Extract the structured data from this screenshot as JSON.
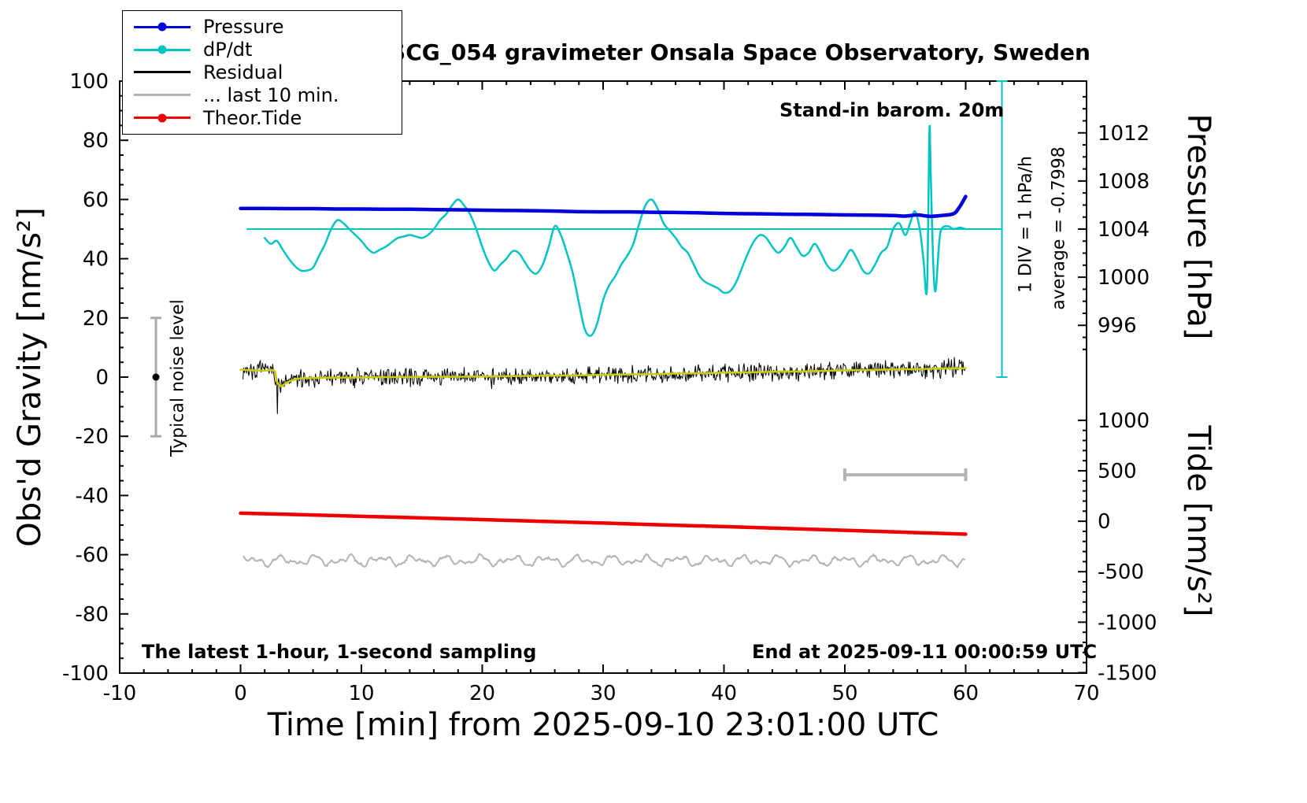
{
  "title": "SCG_054 gravimeter Onsala Space Observatory, Sweden",
  "annotations": {
    "barom": "Stand-in barom. 20m",
    "div_scale": "1 DIV = 1 hPa/h",
    "average": "average = -0.7998",
    "noise_level": "Typical noise level",
    "sampling": "The latest 1-hour, 1-second sampling",
    "end_time": "End at 2025-09-11 00:00:59 UTC"
  },
  "legend": [
    {
      "label": "Pressure",
      "color": "#0000dd",
      "marker": true
    },
    {
      "label": "dP/dt",
      "color": "#00c4c4",
      "marker": true
    },
    {
      "label": "Residual",
      "color": "#000000",
      "marker": false
    },
    {
      "label": "... last 10 min.",
      "color": "#b3b3b3",
      "marker": false
    },
    {
      "label": "Theor.Tide",
      "color": "#ee0000",
      "marker": true
    }
  ],
  "chart_data": {
    "type": "line",
    "title": "SCG_054 gravimeter Onsala Space Observatory, Sweden",
    "xlabel": "Time [min] from 2025-09-10 23:01:00 UTC",
    "x_range": [
      -10,
      70
    ],
    "x_major_ticks": [
      -10,
      0,
      10,
      20,
      30,
      40,
      50,
      60,
      70
    ],
    "x_minor_step": 2,
    "y_left": {
      "label": "Obs'd Gravity [nm/s²]",
      "range": [
        -100,
        100
      ],
      "major_ticks": [
        -100,
        -80,
        -60,
        -40,
        -20,
        0,
        20,
        40,
        60,
        80,
        100
      ],
      "minor_step": 5
    },
    "y_right_pressure": {
      "label": "Pressure [hPa]",
      "major_ticks": [
        996,
        1000,
        1004,
        1008,
        1012
      ],
      "minor_step": 1,
      "minor_range": [
        994,
        1015
      ],
      "gravity_equiv": "g = 50 + (hPa - 1004) * 4.064"
    },
    "y_right_tide": {
      "label": "Tide [nm/s²]",
      "major_ticks": [
        -1500,
        -1000,
        -500,
        0,
        500,
        1000
      ],
      "minor_step": 100,
      "gravity_equiv": "g = -48.7 + tide * 0.0341"
    },
    "series": [
      {
        "name": "Pressure",
        "axis": "pressure",
        "units": "hPa",
        "color": "#0000dd",
        "width": 4.5,
        "render": "smooth",
        "points": [
          [
            0,
            1005.72
          ],
          [
            2,
            1005.72
          ],
          [
            4,
            1005.7
          ],
          [
            6,
            1005.7
          ],
          [
            8,
            1005.67
          ],
          [
            10,
            1005.67
          ],
          [
            12,
            1005.65
          ],
          [
            14,
            1005.65
          ],
          [
            16,
            1005.62
          ],
          [
            18,
            1005.6
          ],
          [
            20,
            1005.57
          ],
          [
            22,
            1005.55
          ],
          [
            24,
            1005.53
          ],
          [
            26,
            1005.5
          ],
          [
            28,
            1005.45
          ],
          [
            30,
            1005.43
          ],
          [
            32,
            1005.43
          ],
          [
            34,
            1005.4
          ],
          [
            36,
            1005.38
          ],
          [
            38,
            1005.35
          ],
          [
            40,
            1005.3
          ],
          [
            42,
            1005.28
          ],
          [
            44,
            1005.25
          ],
          [
            46,
            1005.23
          ],
          [
            48,
            1005.21
          ],
          [
            50,
            1005.18
          ],
          [
            52,
            1005.16
          ],
          [
            54,
            1005.13
          ],
          [
            55,
            1005.08
          ],
          [
            56,
            1005.18
          ],
          [
            57,
            1005.06
          ],
          [
            58,
            1005.13
          ],
          [
            59,
            1005.28
          ],
          [
            59.5,
            1005.85
          ],
          [
            60,
            1006.71
          ]
        ]
      },
      {
        "name": "dP/dt",
        "axis": "gravity",
        "units": "hPa/h (1 DIV = 1 hPa/h, zero line at g=50)",
        "color": "#00c4c4",
        "width": 2.5,
        "render": "smooth",
        "points": [
          [
            2,
            47
          ],
          [
            2.5,
            45
          ],
          [
            3,
            46
          ],
          [
            3.5,
            43
          ],
          [
            4,
            40
          ],
          [
            4.5,
            37.5
          ],
          [
            5,
            36
          ],
          [
            5.5,
            36
          ],
          [
            6,
            37
          ],
          [
            6.5,
            41
          ],
          [
            7,
            45
          ],
          [
            7.5,
            50
          ],
          [
            8,
            53
          ],
          [
            8.5,
            52
          ],
          [
            9,
            50
          ],
          [
            9.5,
            48
          ],
          [
            10,
            46
          ],
          [
            10.5,
            43.5
          ],
          [
            11,
            42
          ],
          [
            11.5,
            43
          ],
          [
            12,
            44
          ],
          [
            12.5,
            45.5
          ],
          [
            13,
            47
          ],
          [
            13.5,
            47.5
          ],
          [
            14,
            48
          ],
          [
            14.5,
            47.5
          ],
          [
            15,
            47
          ],
          [
            15.5,
            48
          ],
          [
            16,
            50
          ],
          [
            16.5,
            53
          ],
          [
            17,
            55
          ],
          [
            17.5,
            58
          ],
          [
            18,
            60
          ],
          [
            18.5,
            58
          ],
          [
            19,
            55
          ],
          [
            19.5,
            50
          ],
          [
            20,
            44
          ],
          [
            20.5,
            39
          ],
          [
            21,
            36
          ],
          [
            21.5,
            38
          ],
          [
            22,
            40
          ],
          [
            22.5,
            42.5
          ],
          [
            23,
            42
          ],
          [
            23.5,
            39
          ],
          [
            24,
            36
          ],
          [
            24.5,
            35
          ],
          [
            25,
            38
          ],
          [
            25.5,
            44
          ],
          [
            26,
            51
          ],
          [
            26.5,
            48
          ],
          [
            27,
            42
          ],
          [
            27.5,
            35
          ],
          [
            28,
            25
          ],
          [
            28.5,
            16
          ],
          [
            29,
            14
          ],
          [
            29.5,
            18
          ],
          [
            30,
            26
          ],
          [
            30.5,
            31
          ],
          [
            31,
            34
          ],
          [
            31.5,
            38
          ],
          [
            32,
            41
          ],
          [
            32.5,
            45
          ],
          [
            33,
            52
          ],
          [
            33.5,
            58
          ],
          [
            34,
            60
          ],
          [
            34.5,
            57
          ],
          [
            35,
            52
          ],
          [
            35.5,
            49.5
          ],
          [
            36,
            47
          ],
          [
            36.5,
            44
          ],
          [
            37,
            42
          ],
          [
            37.5,
            38
          ],
          [
            38,
            34
          ],
          [
            38.5,
            32
          ],
          [
            39,
            31
          ],
          [
            39.5,
            30
          ],
          [
            40,
            28.5
          ],
          [
            40.5,
            29
          ],
          [
            41,
            32
          ],
          [
            41.5,
            37
          ],
          [
            42,
            42
          ],
          [
            42.5,
            46
          ],
          [
            43,
            48
          ],
          [
            43.5,
            47
          ],
          [
            44,
            44
          ],
          [
            44.5,
            42
          ],
          [
            45,
            44
          ],
          [
            45.5,
            47
          ],
          [
            46,
            44
          ],
          [
            46.5,
            41
          ],
          [
            47,
            42
          ],
          [
            47.5,
            45
          ],
          [
            48,
            42
          ],
          [
            48.5,
            38
          ],
          [
            49,
            36
          ],
          [
            49.5,
            37
          ],
          [
            50,
            40
          ],
          [
            50.5,
            43
          ],
          [
            51,
            40
          ],
          [
            51.5,
            36
          ],
          [
            52,
            35
          ],
          [
            52.5,
            38
          ],
          [
            53,
            42
          ],
          [
            53.5,
            44
          ],
          [
            54,
            50
          ],
          [
            54.5,
            52
          ],
          [
            55,
            48
          ],
          [
            55.4,
            52
          ],
          [
            55.8,
            56
          ],
          [
            56.2,
            50
          ],
          [
            56.5,
            40
          ],
          [
            56.8,
            30
          ],
          [
            57,
            83
          ],
          [
            57.1,
            70
          ],
          [
            57.3,
            40
          ],
          [
            57.5,
            29
          ],
          [
            57.8,
            45
          ],
          [
            58,
            50
          ],
          [
            58.5,
            51
          ],
          [
            59,
            50
          ],
          [
            59.5,
            50.5
          ],
          [
            60,
            50
          ]
        ]
      },
      {
        "name": "Residual",
        "axis": "gravity",
        "units": "nm/s²",
        "color": "#000000",
        "width": 1,
        "render": "noise",
        "amplitude": 2.2,
        "step": 0.06,
        "seed": 7,
        "x_start": 0.2,
        "x_end": 60,
        "spike": {
          "x": 3.05,
          "y": -12.5
        },
        "follows": "Residual smooth"
      },
      {
        "name": "Residual smooth",
        "axis": "gravity",
        "units": "nm/s²",
        "color": "#cccc00",
        "width": 2.5,
        "render": "smooth",
        "points": [
          [
            0,
            2.5
          ],
          [
            1,
            2.3
          ],
          [
            2,
            2.2
          ],
          [
            2.8,
            2.1
          ],
          [
            3,
            -1.5
          ],
          [
            3.3,
            -3.0
          ],
          [
            3.6,
            -2.5
          ],
          [
            4,
            -1.5
          ],
          [
            4.5,
            -0.8
          ],
          [
            5,
            -0.4
          ],
          [
            6,
            -0.3
          ],
          [
            7,
            -0.2
          ],
          [
            8,
            -0.2
          ],
          [
            10,
            -0.1
          ],
          [
            12,
            0
          ],
          [
            14,
            0
          ],
          [
            16,
            0.1
          ],
          [
            18,
            0.1
          ],
          [
            20,
            0.2
          ],
          [
            22,
            0.3
          ],
          [
            24,
            0.4
          ],
          [
            26,
            0.5
          ],
          [
            28,
            0.6
          ],
          [
            30,
            0.8
          ],
          [
            32,
            0.9
          ],
          [
            34,
            1.0
          ],
          [
            36,
            1.2
          ],
          [
            38,
            1.3
          ],
          [
            40,
            1.5
          ],
          [
            42,
            1.6
          ],
          [
            44,
            1.8
          ],
          [
            46,
            1.9
          ],
          [
            48,
            2.1
          ],
          [
            50,
            2.3
          ],
          [
            52,
            2.4
          ],
          [
            54,
            2.6
          ],
          [
            56,
            2.7
          ],
          [
            58,
            2.9
          ],
          [
            60,
            3.0
          ]
        ]
      },
      {
        "name": "... last 10 min.",
        "axis": "gravity",
        "units": "nm/s²",
        "color": "#b3b3b3",
        "width": 2,
        "render": "wave",
        "baseline": -62,
        "x_start": 0.2,
        "x_end": 60,
        "step": 0.08,
        "components": [
          [
            1.1,
            2.3,
            0
          ],
          [
            0.7,
            4.1,
            1.3
          ],
          [
            0.5,
            7.7,
            0.5
          ]
        ],
        "noise_amp": 0.6,
        "seed": 13
      },
      {
        "name": "Theor.Tide",
        "axis": "tide",
        "units": "nm/s² (tide axis)",
        "color": "#ee0000",
        "width": 4.5,
        "render": "smooth",
        "points": [
          [
            0,
            80
          ],
          [
            5,
            65
          ],
          [
            10,
            49
          ],
          [
            15,
            33
          ],
          [
            20,
            16
          ],
          [
            25,
            -1
          ],
          [
            30,
            -18
          ],
          [
            35,
            -36
          ],
          [
            40,
            -53
          ],
          [
            45,
            -71
          ],
          [
            50,
            -90
          ],
          [
            55,
            -109
          ],
          [
            60,
            -128
          ]
        ]
      }
    ],
    "extras": {
      "reference_line": {
        "y_gravity": 50,
        "x_start": 0.5,
        "x_end": 63,
        "color": "#00c4c4",
        "note": "dP/dt zero line = 1004 hPa"
      },
      "div_bar": {
        "x": 63,
        "y_start": 0,
        "y_end": 100,
        "color": "#00c4c4",
        "label": "1 DIV = 1 hPa/h"
      },
      "gray_scale_bar": {
        "y_gravity": -33,
        "x_start": 50,
        "x_end": 60,
        "color": "#b3b3b3"
      },
      "noise_error_bar": {
        "x": -7,
        "y_start": -20,
        "y_end": 20,
        "dot_y": 0,
        "color": "#aaaaaa",
        "label": "Typical noise level"
      }
    }
  }
}
